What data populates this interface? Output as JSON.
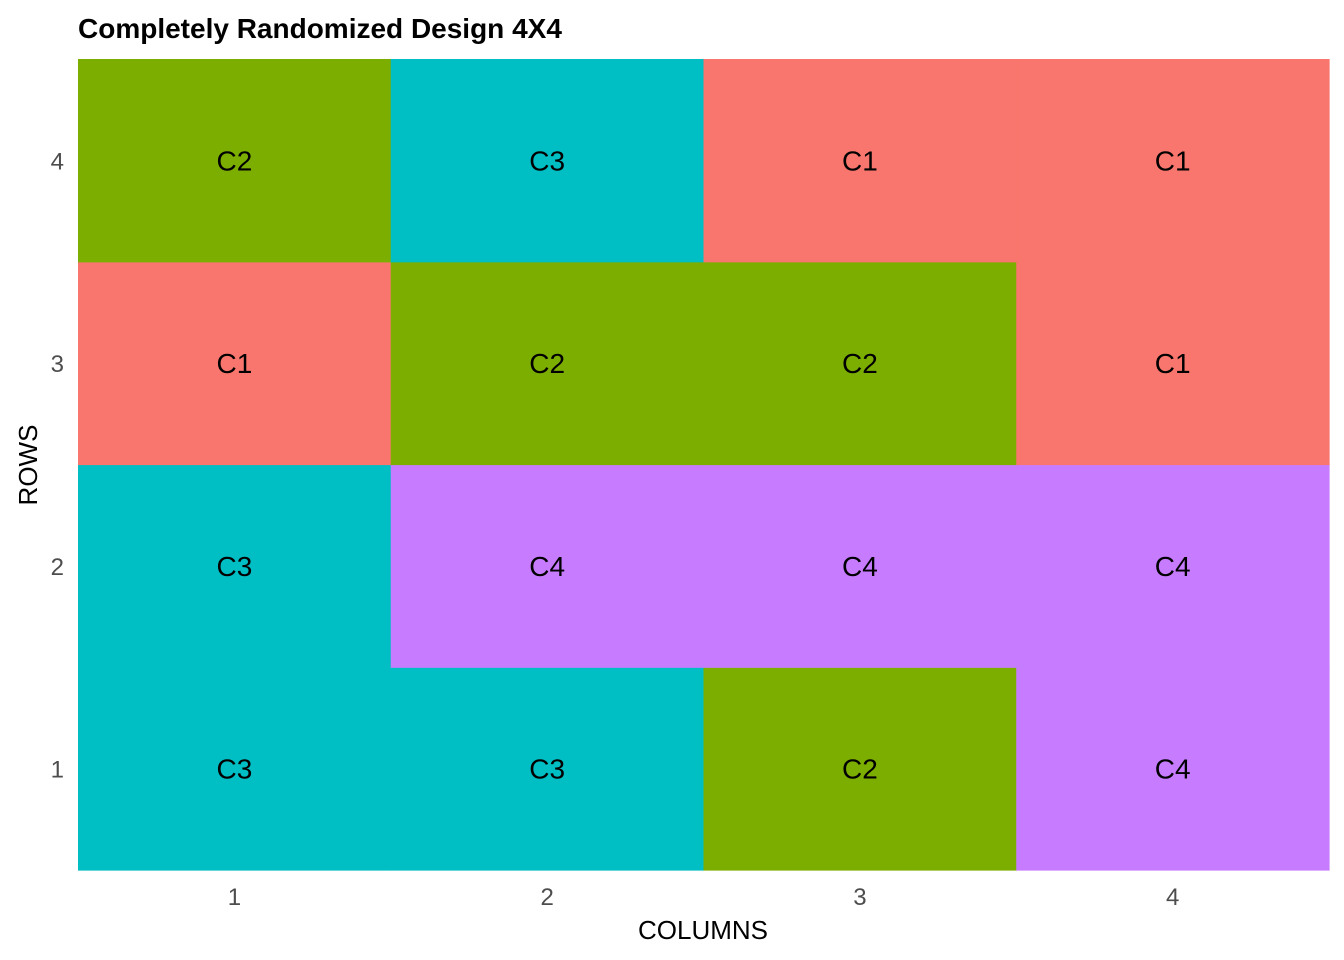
{
  "chart_data": {
    "type": "heatmap",
    "title": "Completely Randomized Design 4X4",
    "xlabel": "COLUMNS",
    "ylabel": "ROWS",
    "x_ticks": [
      "1",
      "2",
      "3",
      "4"
    ],
    "y_ticks": [
      "1",
      "2",
      "3",
      "4"
    ],
    "rows": [
      {
        "row": "1",
        "cells": [
          "C3",
          "C3",
          "C2",
          "C4"
        ]
      },
      {
        "row": "2",
        "cells": [
          "C3",
          "C4",
          "C4",
          "C4"
        ]
      },
      {
        "row": "3",
        "cells": [
          "C1",
          "C2",
          "C2",
          "C1"
        ]
      },
      {
        "row": "4",
        "cells": [
          "C2",
          "C3",
          "C1",
          "C1"
        ]
      }
    ],
    "treatment_colors": {
      "C1": "#F8766D",
      "C2": "#7CAE00",
      "C3": "#00BFC4",
      "C4": "#C77CFF"
    },
    "legend": "none",
    "grid": false
  }
}
